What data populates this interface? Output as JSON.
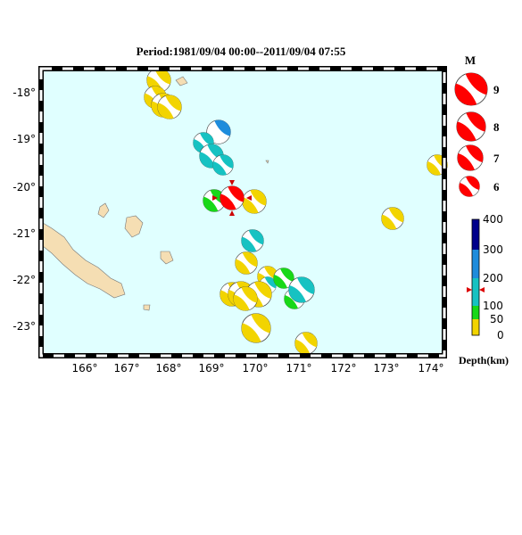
{
  "title": "Period:1981/09/04 00:00--2011/09/04 07:55",
  "longitude_labels": [
    "166°",
    "167°",
    "168°",
    "169°",
    "170°",
    "171°",
    "172°",
    "173°",
    "174°"
  ],
  "latitude_labels": [
    "-18°",
    "-19°",
    "-20°",
    "-21°",
    "-22°",
    "-23°"
  ],
  "magnitude_legend": {
    "heading": "M",
    "labels": [
      "9",
      "8",
      "7",
      "6"
    ]
  },
  "depth_legend": {
    "labels": [
      "400",
      "300",
      "200",
      "100",
      "50",
      "0"
    ],
    "title": "Depth(km)"
  }
}
